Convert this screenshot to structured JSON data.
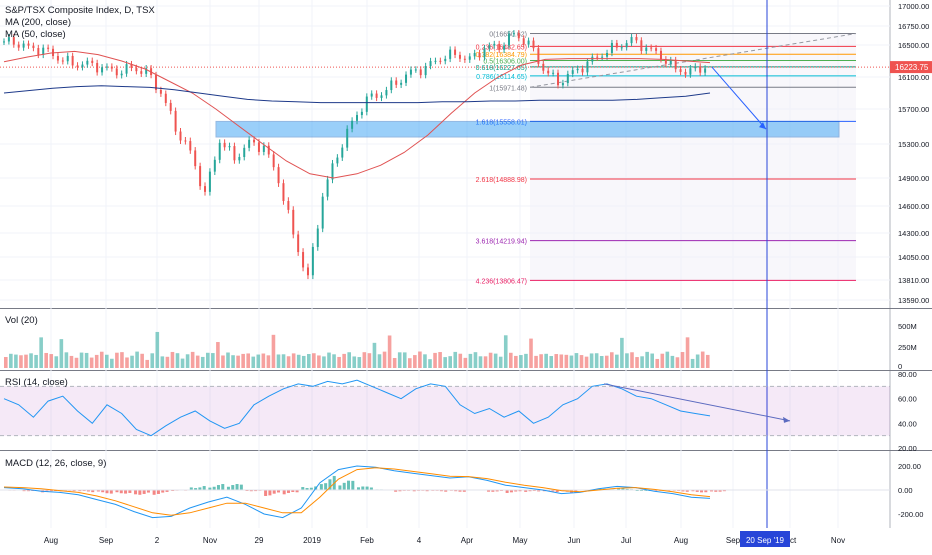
{
  "legend": {
    "title": "S&P/TSX Composite Index, D, TSX",
    "ma200": "MA (200, close)",
    "ma50": "MA (50, close)"
  },
  "panes": {
    "vol": "Vol (20)",
    "rsi": "RSI (14, close)",
    "macd": "MACD (12, 26, close, 9)"
  },
  "last_price_label": "16223.75",
  "crosshair_date_label": "20 Sep '19",
  "colors": {
    "up": "#26a69a",
    "down": "#ef5350",
    "ma200": "#1e3a8a",
    "ma50": "#e05252",
    "fib_zone": "#2196f3",
    "crosshair": "#2745d8",
    "rsi_line": "#2196f3",
    "macd_line": "#2196f3",
    "signal_line": "#ff8c00"
  },
  "chart_data": [
    {
      "type": "candlestick",
      "title": "S&P/TSX Composite Index, D, TSX",
      "x_ticks": [
        "Aug",
        "Sep",
        "2",
        "Nov",
        "29",
        "2019",
        "Feb",
        "4",
        "Apr",
        "May",
        "Jun",
        "Jul",
        "Aug",
        "Sep",
        "Oct",
        "Nov"
      ],
      "y_ticks": [
        17000,
        16750,
        16500,
        16100,
        15700,
        15300,
        14900,
        14600,
        14300,
        14050,
        13810,
        13590
      ],
      "last_price": 16223.75,
      "series": [
        {
          "name": "MA (50, close)",
          "values": [
            16290,
            16350,
            16400,
            16420,
            16380,
            16300,
            16200,
            16050,
            15900,
            15700,
            15500,
            15300,
            15100,
            14950,
            14900,
            14950,
            15050,
            15200,
            15400,
            15650,
            15900,
            16100,
            16250,
            16320,
            16330,
            16330,
            16330,
            16330,
            16320,
            16300,
            16280
          ]
        },
        {
          "name": "MA (200, close)",
          "values": [
            15900,
            15930,
            15960,
            15980,
            15990,
            15980,
            15970,
            15940,
            15900,
            15860,
            15820,
            15800,
            15790,
            15780,
            15780,
            15780,
            15780,
            15780,
            15790,
            15790,
            15800,
            15800,
            15810,
            15810,
            15810,
            15810,
            15820,
            15840,
            15860,
            15900
          ]
        },
        {
          "name": "close",
          "values": [
            16540,
            16560,
            16460,
            16420,
            16350,
            16280,
            16250,
            16200,
            16180,
            16220,
            16150,
            15900,
            15500,
            15200,
            14700,
            15350,
            15150,
            15300,
            15250,
            14900,
            14300,
            13800,
            14700,
            15200,
            15550,
            15800,
            15900,
            16050,
            16150,
            16200,
            16350,
            16400,
            16300,
            16450,
            16500,
            16650,
            16500,
            16200,
            16050,
            16150,
            16250,
            16400,
            16500,
            16550,
            16450,
            16380,
            16200,
            16150,
            16220
          ]
        }
      ],
      "fibonacci": [
        {
          "level": "0",
          "price": 16650.62
        },
        {
          "level": "0.236",
          "price": 16482.65
        },
        {
          "level": "0.382",
          "price": 16384.79
        },
        {
          "level": "0.5",
          "price": 16306.0
        },
        {
          "level": "0.618",
          "price": 16227.05
        },
        {
          "level": "0.786",
          "price": 16114.65
        },
        {
          "level": "1",
          "price": 15971.48
        },
        {
          "level": "1.618",
          "price": 15558.01
        },
        {
          "level": "2.618",
          "price": 14888.98
        },
        {
          "level": "3.618",
          "price": 14219.94
        },
        {
          "level": "4.236",
          "price": 13806.47
        }
      ],
      "fib_text": [
        "0(16650.62)",
        "0.236(16482.65)",
        "0.382(16384.79)",
        "0.5(16306.00)",
        "0.618(16227.05)",
        "0.786(16114.65)",
        "1(15971.48)",
        "1.618(15558.01)",
        "2.618(14888.98)",
        "3.618(14219.94)",
        "4.236(13806.47)"
      ]
    },
    {
      "type": "bar",
      "title": "Vol (20)",
      "y_ticks": [
        "500M",
        "250M",
        "0"
      ]
    },
    {
      "type": "line",
      "title": "RSI (14, close)",
      "y_ticks": [
        "80.00",
        "60.00",
        "40.00",
        "20.00"
      ],
      "bands": [
        70,
        30
      ],
      "values": [
        60,
        55,
        45,
        58,
        62,
        50,
        40,
        55,
        48,
        35,
        30,
        38,
        45,
        50,
        42,
        36,
        40,
        55,
        62,
        68,
        72,
        70,
        74,
        72,
        75,
        70,
        65,
        60,
        68,
        72,
        70,
        55,
        48,
        52,
        45,
        50,
        40,
        45,
        55,
        60,
        70,
        72,
        68,
        62,
        60,
        55,
        50,
        48,
        46
      ]
    },
    {
      "type": "line",
      "title": "MACD (12, 26, close, 9)",
      "y_ticks": [
        "200.00",
        "0.00",
        "-200.00"
      ],
      "series": [
        {
          "name": "MACD",
          "values": [
            20,
            10,
            -10,
            -20,
            -40,
            -80,
            -120,
            -180,
            -230,
            -220,
            -150,
            -100,
            -60,
            -120,
            -200,
            -230,
            -150,
            60,
            170,
            200,
            190,
            160,
            140,
            120,
            100,
            110,
            80,
            40,
            20,
            0,
            -30,
            -20,
            10,
            30,
            20,
            -10,
            -30,
            -60,
            -70
          ]
        },
        {
          "name": "Signal",
          "values": [
            25,
            20,
            10,
            -5,
            -20,
            -50,
            -90,
            -140,
            -190,
            -210,
            -190,
            -150,
            -110,
            -110,
            -150,
            -190,
            -190,
            -60,
            90,
            170,
            185,
            175,
            155,
            135,
            115,
            112,
            95,
            65,
            40,
            20,
            -5,
            -15,
            0,
            15,
            20,
            5,
            -15,
            -40,
            -55
          ]
        }
      ]
    }
  ]
}
